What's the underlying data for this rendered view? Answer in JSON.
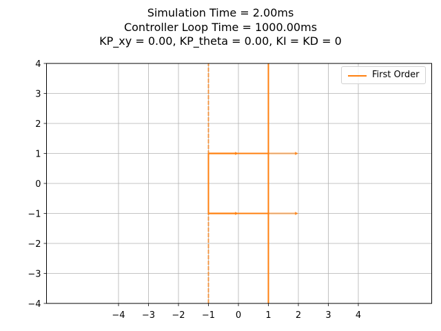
{
  "title_lines": [
    "Simulation Time = 2.00ms",
    "Controller Loop Time = 1000.00ms",
    "KP_xy = 0.00, KP_theta = 0.00, KI = KD = 0"
  ],
  "colors": {
    "series": "#ff7f0e",
    "grid": "#b0b0b0",
    "axis": "#000000"
  },
  "chart_data": {
    "type": "line",
    "title": "Simulation Time = 2.00ms\nController Loop Time = 1000.00ms\nKP_xy = 0.00, KP_theta = 0.00, KI = KD = 0",
    "xlabel": "",
    "ylabel": "",
    "xlim": [
      -6.4,
      6.45
    ],
    "ylim": [
      -4,
      4
    ],
    "xticks": [
      -4,
      -3,
      -2,
      -1,
      0,
      1,
      2,
      3,
      4
    ],
    "yticks": [
      -4,
      -3,
      -2,
      -1,
      0,
      1,
      2,
      3,
      4
    ],
    "xtick_labels": [
      "−4",
      "−3",
      "−2",
      "−1",
      "0",
      "1",
      "2",
      "3",
      "4"
    ],
    "ytick_labels": [
      "−4",
      "−3",
      "−2",
      "−1",
      "0",
      "1",
      "2",
      "3",
      "4"
    ],
    "grid": true,
    "legend": {
      "position": "upper right",
      "entries": [
        "First Order"
      ]
    },
    "series": [
      {
        "name": "First Order",
        "segments": [
          {
            "x": [
              -1,
              -1
            ],
            "y": [
              -4,
              4
            ],
            "style": "dashed-light"
          },
          {
            "x": [
              1,
              1
            ],
            "y": [
              -4,
              4
            ],
            "style": "solid"
          },
          {
            "x": [
              -1,
              1,
              1,
              -1,
              -1
            ],
            "y": [
              1,
              1,
              -1,
              -1,
              1
            ],
            "style": "solid"
          }
        ],
        "arrows": [
          {
            "from": [
              -1,
              1
            ],
            "to": [
              0,
              1
            ]
          },
          {
            "from": [
              1,
              1
            ],
            "to": [
              2,
              1
            ]
          },
          {
            "from": [
              -1,
              -1
            ],
            "to": [
              0,
              -1
            ]
          },
          {
            "from": [
              1,
              -1
            ],
            "to": [
              2,
              -1
            ]
          }
        ]
      }
    ]
  }
}
